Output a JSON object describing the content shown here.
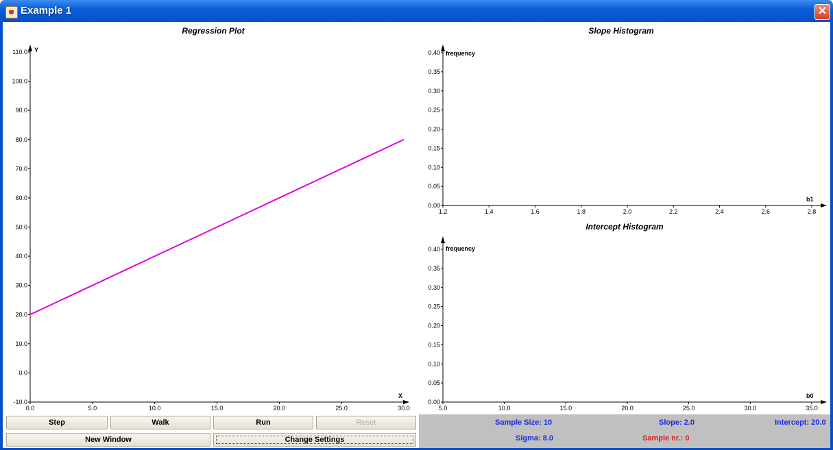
{
  "window": {
    "title": "Example 1"
  },
  "regression_plot": {
    "title": "Regression Plot",
    "xlabel": "X",
    "ylabel": "Y",
    "x_ticks": [
      "0.0",
      "5.0",
      "10.0",
      "15.0",
      "20.0",
      "25.0",
      "30.0"
    ],
    "y_ticks": [
      "-10.0",
      "0.0",
      "10.0",
      "20.0",
      "30.0",
      "40.0",
      "50.0",
      "60.0",
      "70.0",
      "80.0",
      "90.0",
      "100.0",
      "110.0"
    ],
    "line_color": "#e000e0"
  },
  "slope_histogram": {
    "title": "Slope Histogram",
    "xlabel": "b1",
    "ylabel": "frequency",
    "x_ticks": [
      "1.2",
      "1.4",
      "1.6",
      "1.8",
      "2.0",
      "2.2",
      "2.4",
      "2.6",
      "2.8"
    ],
    "y_ticks": [
      "0.00",
      "0.05",
      "0.10",
      "0.15",
      "0.20",
      "0.25",
      "0.30",
      "0.35",
      "0.40"
    ]
  },
  "intercept_histogram": {
    "title": "Intercept Histogram",
    "xlabel": "b0",
    "ylabel": "frequency",
    "x_ticks": [
      "5.0",
      "10.0",
      "15.0",
      "20.0",
      "25.0",
      "30.0",
      "35.0"
    ],
    "y_ticks": [
      "0.00",
      "0.05",
      "0.10",
      "0.15",
      "0.20",
      "0.25",
      "0.30",
      "0.35",
      "0.40"
    ]
  },
  "buttons": {
    "step": "Step",
    "walk": "Walk",
    "run": "Run",
    "reset": "Reset",
    "new_window": "New Window",
    "change_settings": "Change Settings"
  },
  "status": {
    "sample_size": "Sample Size: 10",
    "slope": "Slope: 2.0",
    "intercept": "Intercept: 20.0",
    "sigma": "Sigma: 8.0",
    "sample_nr": "Sample nr.: 0"
  },
  "chart_data": [
    {
      "type": "line",
      "title": "Regression Plot",
      "xlabel": "X",
      "ylabel": "Y",
      "xlim": [
        0,
        30
      ],
      "ylim": [
        -10,
        110
      ],
      "series": [
        {
          "x": [
            0,
            30
          ],
          "values": [
            20,
            80
          ]
        }
      ]
    },
    {
      "type": "bar",
      "title": "Slope Histogram",
      "xlabel": "b1",
      "ylabel": "frequency",
      "xlim": [
        1.2,
        2.8
      ],
      "ylim": [
        0,
        0.4
      ],
      "values": []
    },
    {
      "type": "bar",
      "title": "Intercept Histogram",
      "xlabel": "b0",
      "ylabel": "frequency",
      "xlim": [
        5,
        35
      ],
      "ylim": [
        0,
        0.4
      ],
      "values": []
    }
  ]
}
